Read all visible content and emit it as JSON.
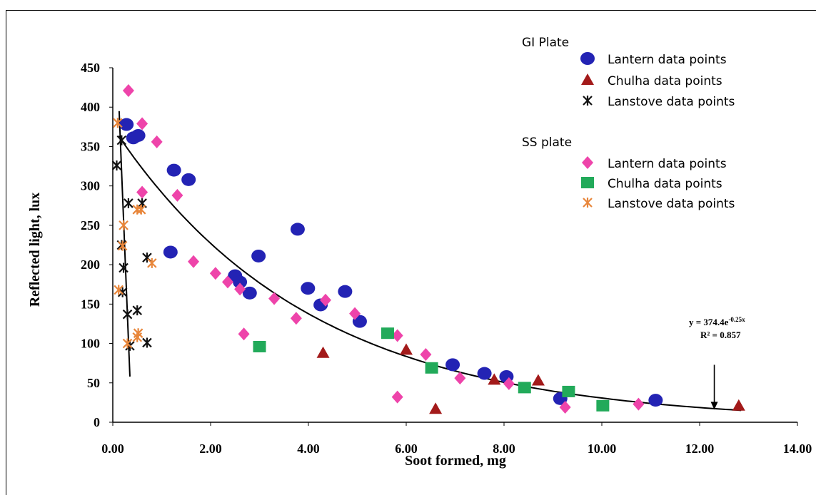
{
  "chart_data": {
    "type": "scatter",
    "xlabel": "Soot formed, mg",
    "ylabel": "Reflected light, lux",
    "xlim": [
      0,
      14
    ],
    "ylim": [
      0,
      450
    ],
    "x_ticks": [
      "0.00",
      "2.00",
      "4.00",
      "6.00",
      "8.00",
      "10.00",
      "12.00",
      "14.00"
    ],
    "y_ticks": [
      "0",
      "50",
      "100",
      "150",
      "200",
      "250",
      "300",
      "350",
      "400",
      "450"
    ],
    "grid": false,
    "legend_groups": [
      {
        "title": "GI Plate",
        "series_index": [
          0,
          1,
          2
        ]
      },
      {
        "title": "SS plate",
        "series_index": [
          3,
          4,
          5
        ]
      }
    ],
    "series": [
      {
        "name": "Lantern data points",
        "group": "GI Plate",
        "marker": "circle",
        "color": "#2323b4",
        "points": [
          [
            0.28,
            378
          ],
          [
            0.42,
            361
          ],
          [
            0.52,
            364
          ],
          [
            1.25,
            320
          ],
          [
            1.55,
            308
          ],
          [
            1.18,
            216
          ],
          [
            2.5,
            186
          ],
          [
            2.6,
            178
          ],
          [
            2.8,
            164
          ],
          [
            2.98,
            211
          ],
          [
            3.78,
            245
          ],
          [
            3.99,
            170
          ],
          [
            4.25,
            149
          ],
          [
            4.75,
            166
          ],
          [
            5.05,
            128
          ],
          [
            6.95,
            73
          ],
          [
            7.6,
            62
          ],
          [
            8.05,
            58
          ],
          [
            9.15,
            30
          ],
          [
            11.1,
            28
          ]
        ]
      },
      {
        "name": "Chulha data points",
        "group": "GI Plate",
        "marker": "triangle",
        "color": "#a31a1a",
        "points": [
          [
            4.3,
            88
          ],
          [
            6.0,
            92
          ],
          [
            6.6,
            17
          ],
          [
            7.8,
            54
          ],
          [
            8.7,
            53
          ],
          [
            12.8,
            21
          ]
        ]
      },
      {
        "name": "Lanstove data points",
        "group": "GI Plate",
        "marker": "asterisk",
        "color": "#111111",
        "points": [
          [
            0.08,
            326
          ],
          [
            0.18,
            358
          ],
          [
            0.18,
            225
          ],
          [
            0.22,
            196
          ],
          [
            0.32,
            278
          ],
          [
            0.6,
            278
          ],
          [
            0.7,
            209
          ],
          [
            0.2,
            165
          ],
          [
            0.3,
            137
          ],
          [
            0.5,
            142
          ],
          [
            0.35,
            97
          ],
          [
            0.7,
            101
          ]
        ]
      },
      {
        "name": "Lantern data points",
        "group": "SS plate",
        "marker": "diamond",
        "color": "#ee44aa",
        "points": [
          [
            0.32,
            421
          ],
          [
            0.6,
            379
          ],
          [
            0.9,
            356
          ],
          [
            0.6,
            292
          ],
          [
            1.32,
            288
          ],
          [
            1.65,
            204
          ],
          [
            2.1,
            189
          ],
          [
            2.35,
            178
          ],
          [
            2.6,
            169
          ],
          [
            2.68,
            112
          ],
          [
            3.3,
            157
          ],
          [
            3.75,
            132
          ],
          [
            4.35,
            155
          ],
          [
            4.95,
            138
          ],
          [
            5.82,
            110
          ],
          [
            5.82,
            32
          ],
          [
            6.4,
            86
          ],
          [
            7.1,
            56
          ],
          [
            8.1,
            49
          ],
          [
            9.25,
            19
          ],
          [
            10.75,
            23
          ]
        ]
      },
      {
        "name": "Chulha data points",
        "group": "SS plate",
        "marker": "square",
        "color": "#22aa5a",
        "points": [
          [
            3.0,
            96
          ],
          [
            5.62,
            113
          ],
          [
            6.52,
            69
          ],
          [
            8.42,
            44
          ],
          [
            9.32,
            39
          ],
          [
            10.02,
            21
          ]
        ]
      },
      {
        "name": "Lanstove data points",
        "group": "SS plate",
        "marker": "asterisk",
        "color": "#e8863a",
        "points": [
          [
            0.1,
            380
          ],
          [
            0.12,
            168
          ],
          [
            0.2,
            224
          ],
          [
            0.22,
            250
          ],
          [
            0.3,
            100
          ],
          [
            0.5,
            270
          ],
          [
            0.58,
            270
          ],
          [
            0.8,
            202
          ],
          [
            0.52,
            113
          ],
          [
            0.5,
            108
          ]
        ]
      }
    ],
    "trendlines": [
      {
        "type": "exponential",
        "a": 374.4,
        "b": -0.25,
        "x_range": [
          0.12,
          12.85
        ]
      },
      {
        "type": "linear",
        "from": [
          0.13,
          395
        ],
        "to": [
          0.35,
          58
        ]
      }
    ],
    "annotation": {
      "line1_prefix": "y = 374.4e",
      "line1_sup": "-0.25x",
      "line2": "R² = 0.857",
      "arrow_from": [
        12.3,
        53
      ],
      "arrow_to": [
        12.3,
        15
      ]
    }
  }
}
